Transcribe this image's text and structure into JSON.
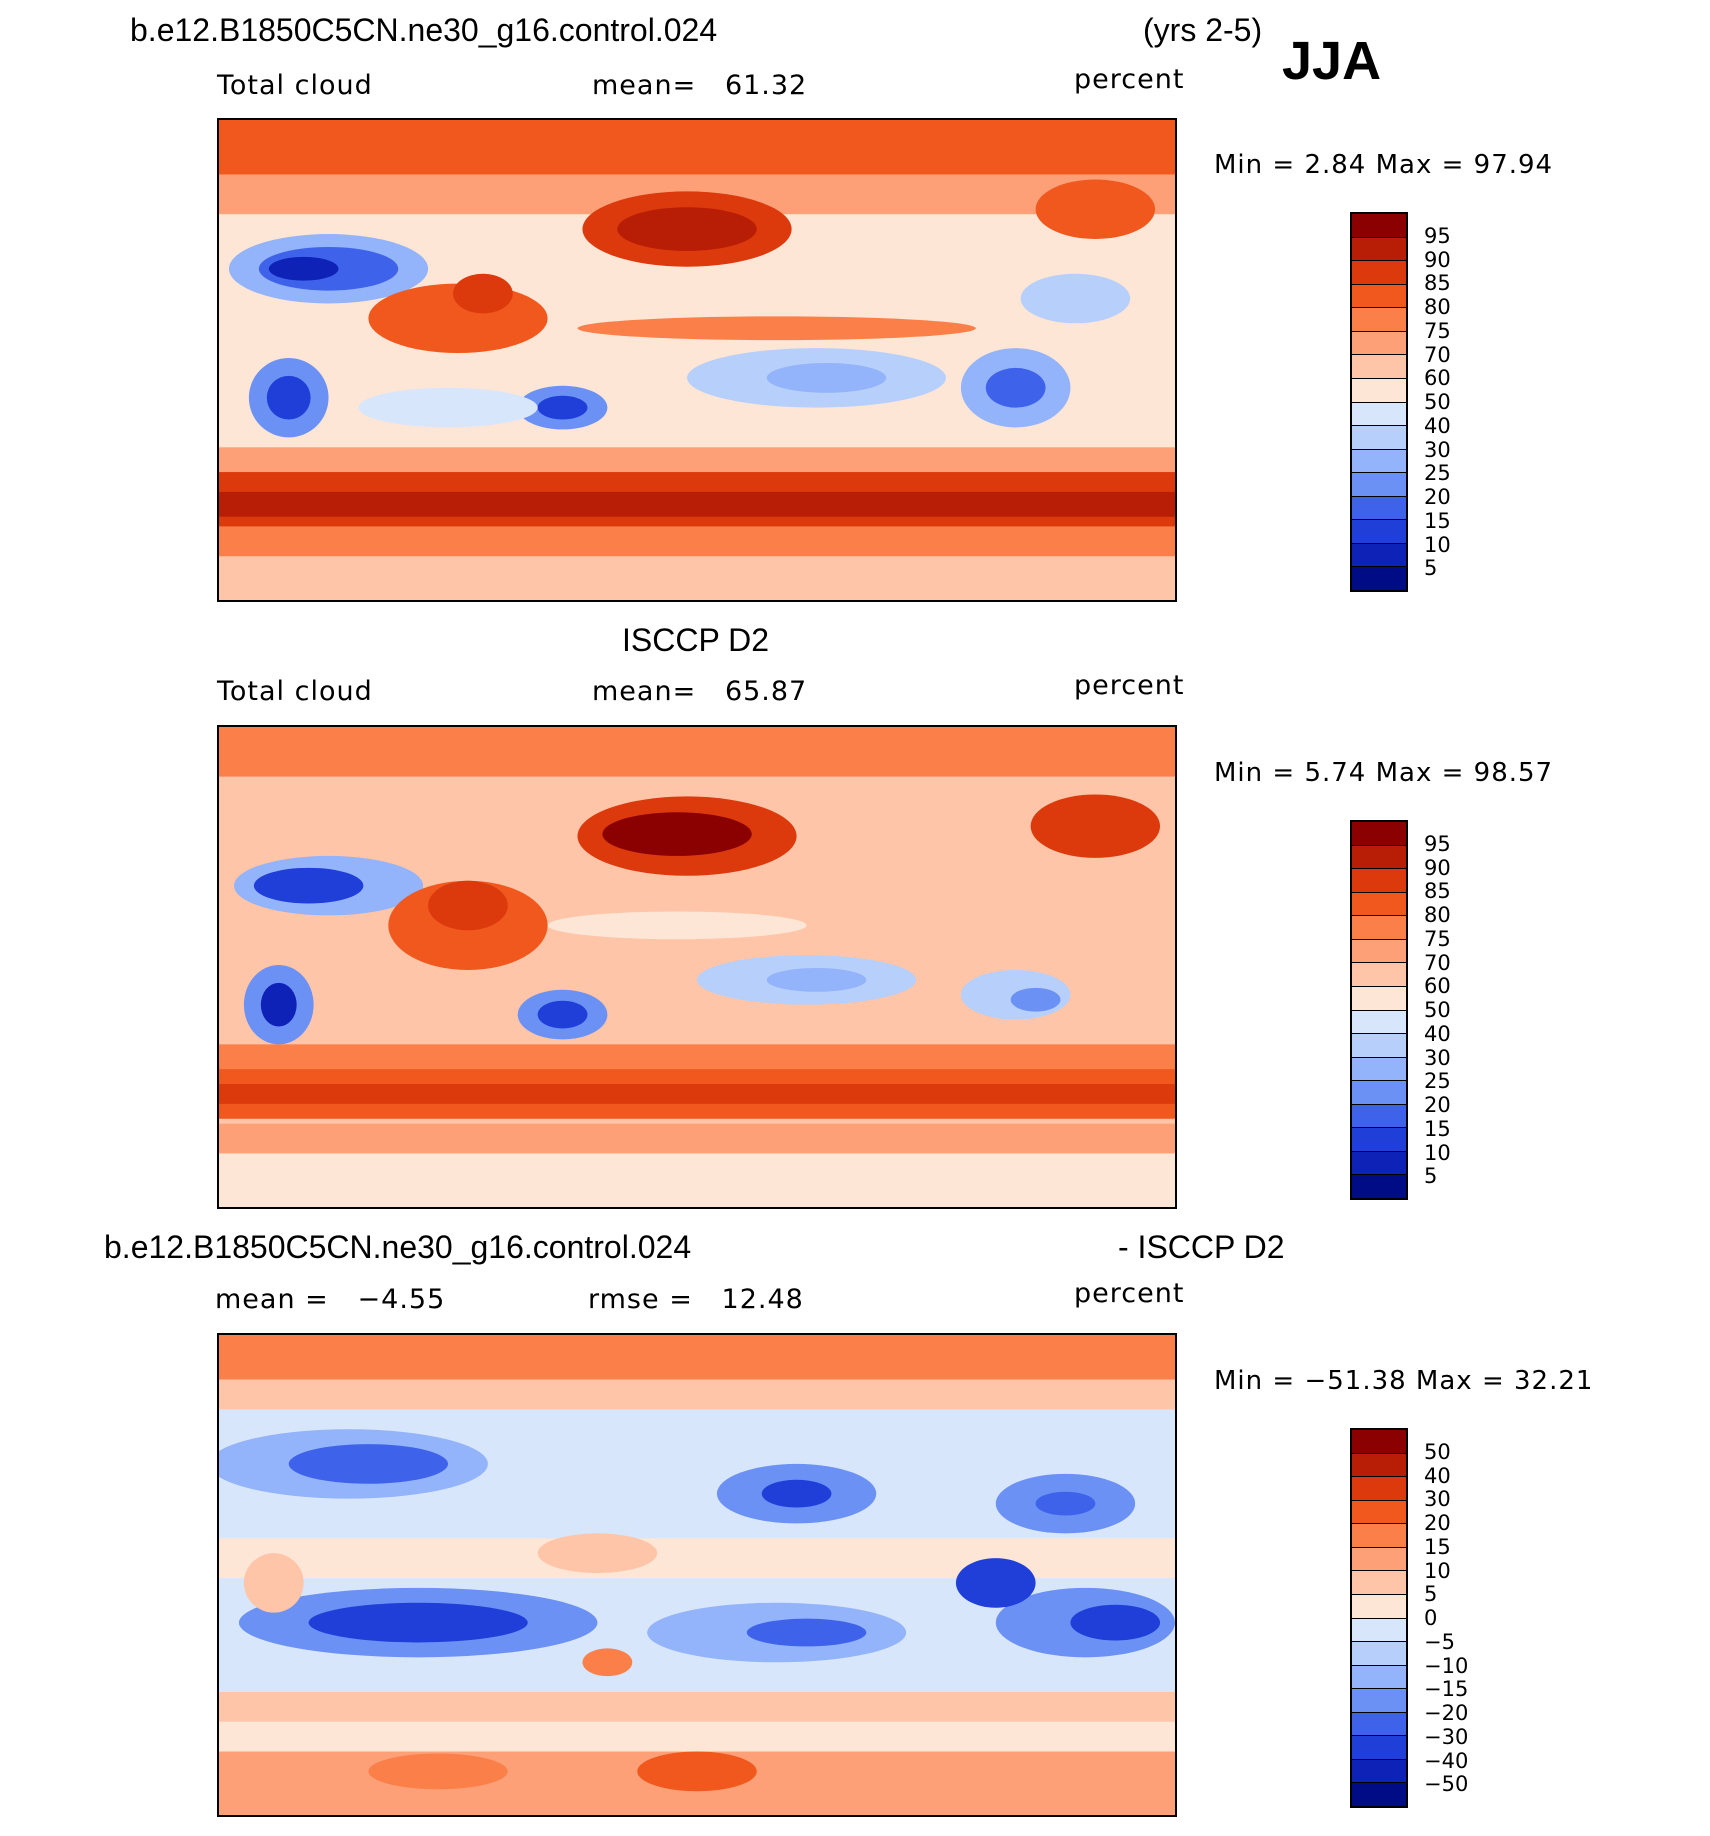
{
  "header": {
    "case_name": "b.e12.B1850C5CN.ne30_g16.control.024",
    "years": "(yrs 2-5)",
    "season": "JJA"
  },
  "panels": [
    {
      "title": "",
      "left_label": "Total cloud",
      "center_label": "mean=   61.32",
      "right_label": "percent",
      "min_max": "Min =    2.84 Max =   97.94",
      "levels": [
        "95",
        "90",
        "85",
        "80",
        "75",
        "70",
        "60",
        "50",
        "40",
        "30",
        "25",
        "20",
        "15",
        "10",
        "5"
      ],
      "colors": [
        "#8b0000",
        "#b81d05",
        "#dc3a0c",
        "#f0581d",
        "#fb7f48",
        "#fea077",
        "#fec5a8",
        "#fde6d6",
        "#d8e6fb",
        "#b7cffb",
        "#93b3fa",
        "#6b91f4",
        "#3e63ea",
        "#1f3fd8",
        "#0e22b8",
        "#000c86"
      ]
    },
    {
      "title": "ISCCP D2",
      "left_label": "Total cloud",
      "center_label": "mean=   65.87",
      "right_label": "percent",
      "min_max": "Min =    5.74 Max =   98.57",
      "levels": [
        "95",
        "90",
        "85",
        "80",
        "75",
        "70",
        "60",
        "50",
        "40",
        "30",
        "25",
        "20",
        "15",
        "10",
        "5"
      ],
      "colors": [
        "#8b0000",
        "#b81d05",
        "#dc3a0c",
        "#f0581d",
        "#fb7f48",
        "#fea077",
        "#fec5a8",
        "#fde6d6",
        "#d8e6fb",
        "#b7cffb",
        "#93b3fa",
        "#6b91f4",
        "#3e63ea",
        "#1f3fd8",
        "#0e22b8",
        "#000c86"
      ]
    },
    {
      "title_left": "b.e12.B1850C5CN.ne30_g16.control.024",
      "title_right": "- ISCCP D2",
      "left_label": "mean =   −4.55",
      "center_label": "rmse =   12.48",
      "right_label": "percent",
      "min_max": "Min = −51.38 Max =   32.21",
      "levels": [
        "50",
        "40",
        "30",
        "20",
        "15",
        "10",
        "5",
        "0",
        "−5",
        "−10",
        "−15",
        "−20",
        "−30",
        "−40",
        "−50"
      ],
      "colors": [
        "#8b0000",
        "#b81d05",
        "#dc3a0c",
        "#f0581d",
        "#fb7f48",
        "#fea077",
        "#fec5a8",
        "#fde6d6",
        "#d8e6fb",
        "#b7cffb",
        "#93b3fa",
        "#6b91f4",
        "#3e63ea",
        "#1f3fd8",
        "#0e22b8",
        "#000c86"
      ]
    }
  ]
}
